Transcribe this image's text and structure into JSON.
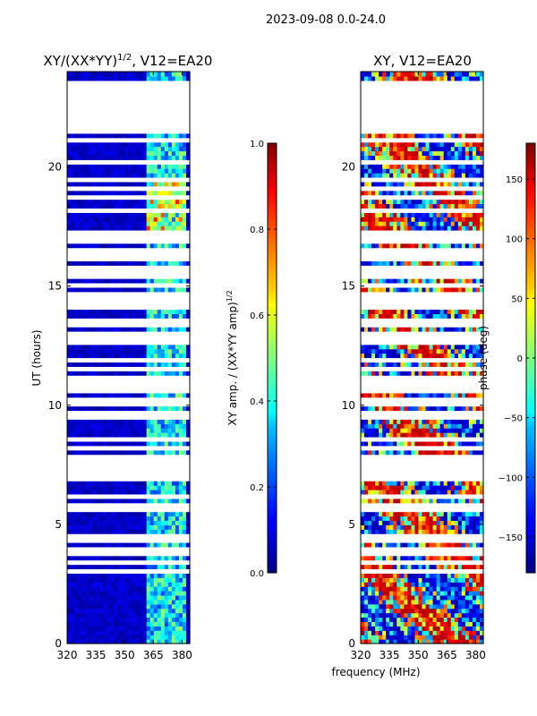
{
  "figure": {
    "suptitle": "2023-09-08 0.0-24.0"
  },
  "chart_data": [
    {
      "type": "heatmap",
      "title_text": "XY/(XX*YY)",
      "title_exp": "1/2",
      "title_suffix": ", V12=EA20",
      "xlabel": "",
      "ylabel": "UT (hours)",
      "xlim": [
        320,
        384
      ],
      "ylim": [
        0,
        24
      ],
      "xticks": [
        320,
        335,
        350,
        365,
        380
      ],
      "yticks": [
        0,
        5,
        10,
        15,
        20
      ],
      "rfi_band_mhz": [
        361,
        383
      ],
      "colormap": "jet",
      "colorbar": {
        "label_text": "XY amp. / (XX*YY amp)",
        "label_exp": "1/2",
        "range": [
          0.0,
          1.0
        ],
        "ticks": [
          "0.0",
          "0.2",
          "0.4",
          "0.6",
          "0.8",
          "1.0"
        ]
      }
    },
    {
      "type": "heatmap",
      "title": "XY, V12=EA20",
      "xlabel": "frequency (MHz)",
      "ylabel": "",
      "xlim": [
        320,
        384
      ],
      "ylim": [
        0,
        24
      ],
      "xticks": [
        320,
        335,
        350,
        365,
        380
      ],
      "yticks": [
        0,
        5,
        10,
        15,
        20
      ],
      "colormap": "jet",
      "colorbar": {
        "label": "phase (deg)",
        "range": [
          -180,
          180
        ],
        "ticks": [
          "−150",
          "−100",
          "−50",
          "0",
          "50",
          "100",
          "150"
        ]
      }
    }
  ],
  "flagged_time_rows_hours": [
    3.0,
    3.35,
    3.85,
    4.05,
    4.3,
    4.55,
    5.6,
    5.72,
    5.85,
    6.1,
    6.95,
    7.1,
    7.25,
    7.45,
    7.62,
    7.85,
    8.2,
    8.5,
    8.65,
    9.45,
    9.55,
    9.75,
    10.05,
    10.2,
    10.3,
    10.55,
    10.75,
    10.9,
    11.2,
    11.5,
    11.85,
    12.65,
    12.85,
    13.05,
    13.35,
    13.55,
    14.05,
    14.25,
    14.55,
    14.75,
    15.1,
    15.5,
    15.65,
    15.8,
    16.15,
    16.4,
    16.6,
    16.9,
    17.1,
    17.25,
    18.15,
    18.75,
    19.1,
    19.45,
    20.2,
    21.15,
    21.55,
    21.8,
    21.95,
    22.1,
    22.25,
    22.4,
    22.55,
    22.7,
    22.85,
    23.0,
    23.15,
    23.3,
    23.45
  ],
  "flagged_time_blocks_hours": [
    [
      16.9,
      17.1
    ],
    [
      21.55,
      22.95
    ],
    [
      23.05,
      23.35
    ]
  ]
}
